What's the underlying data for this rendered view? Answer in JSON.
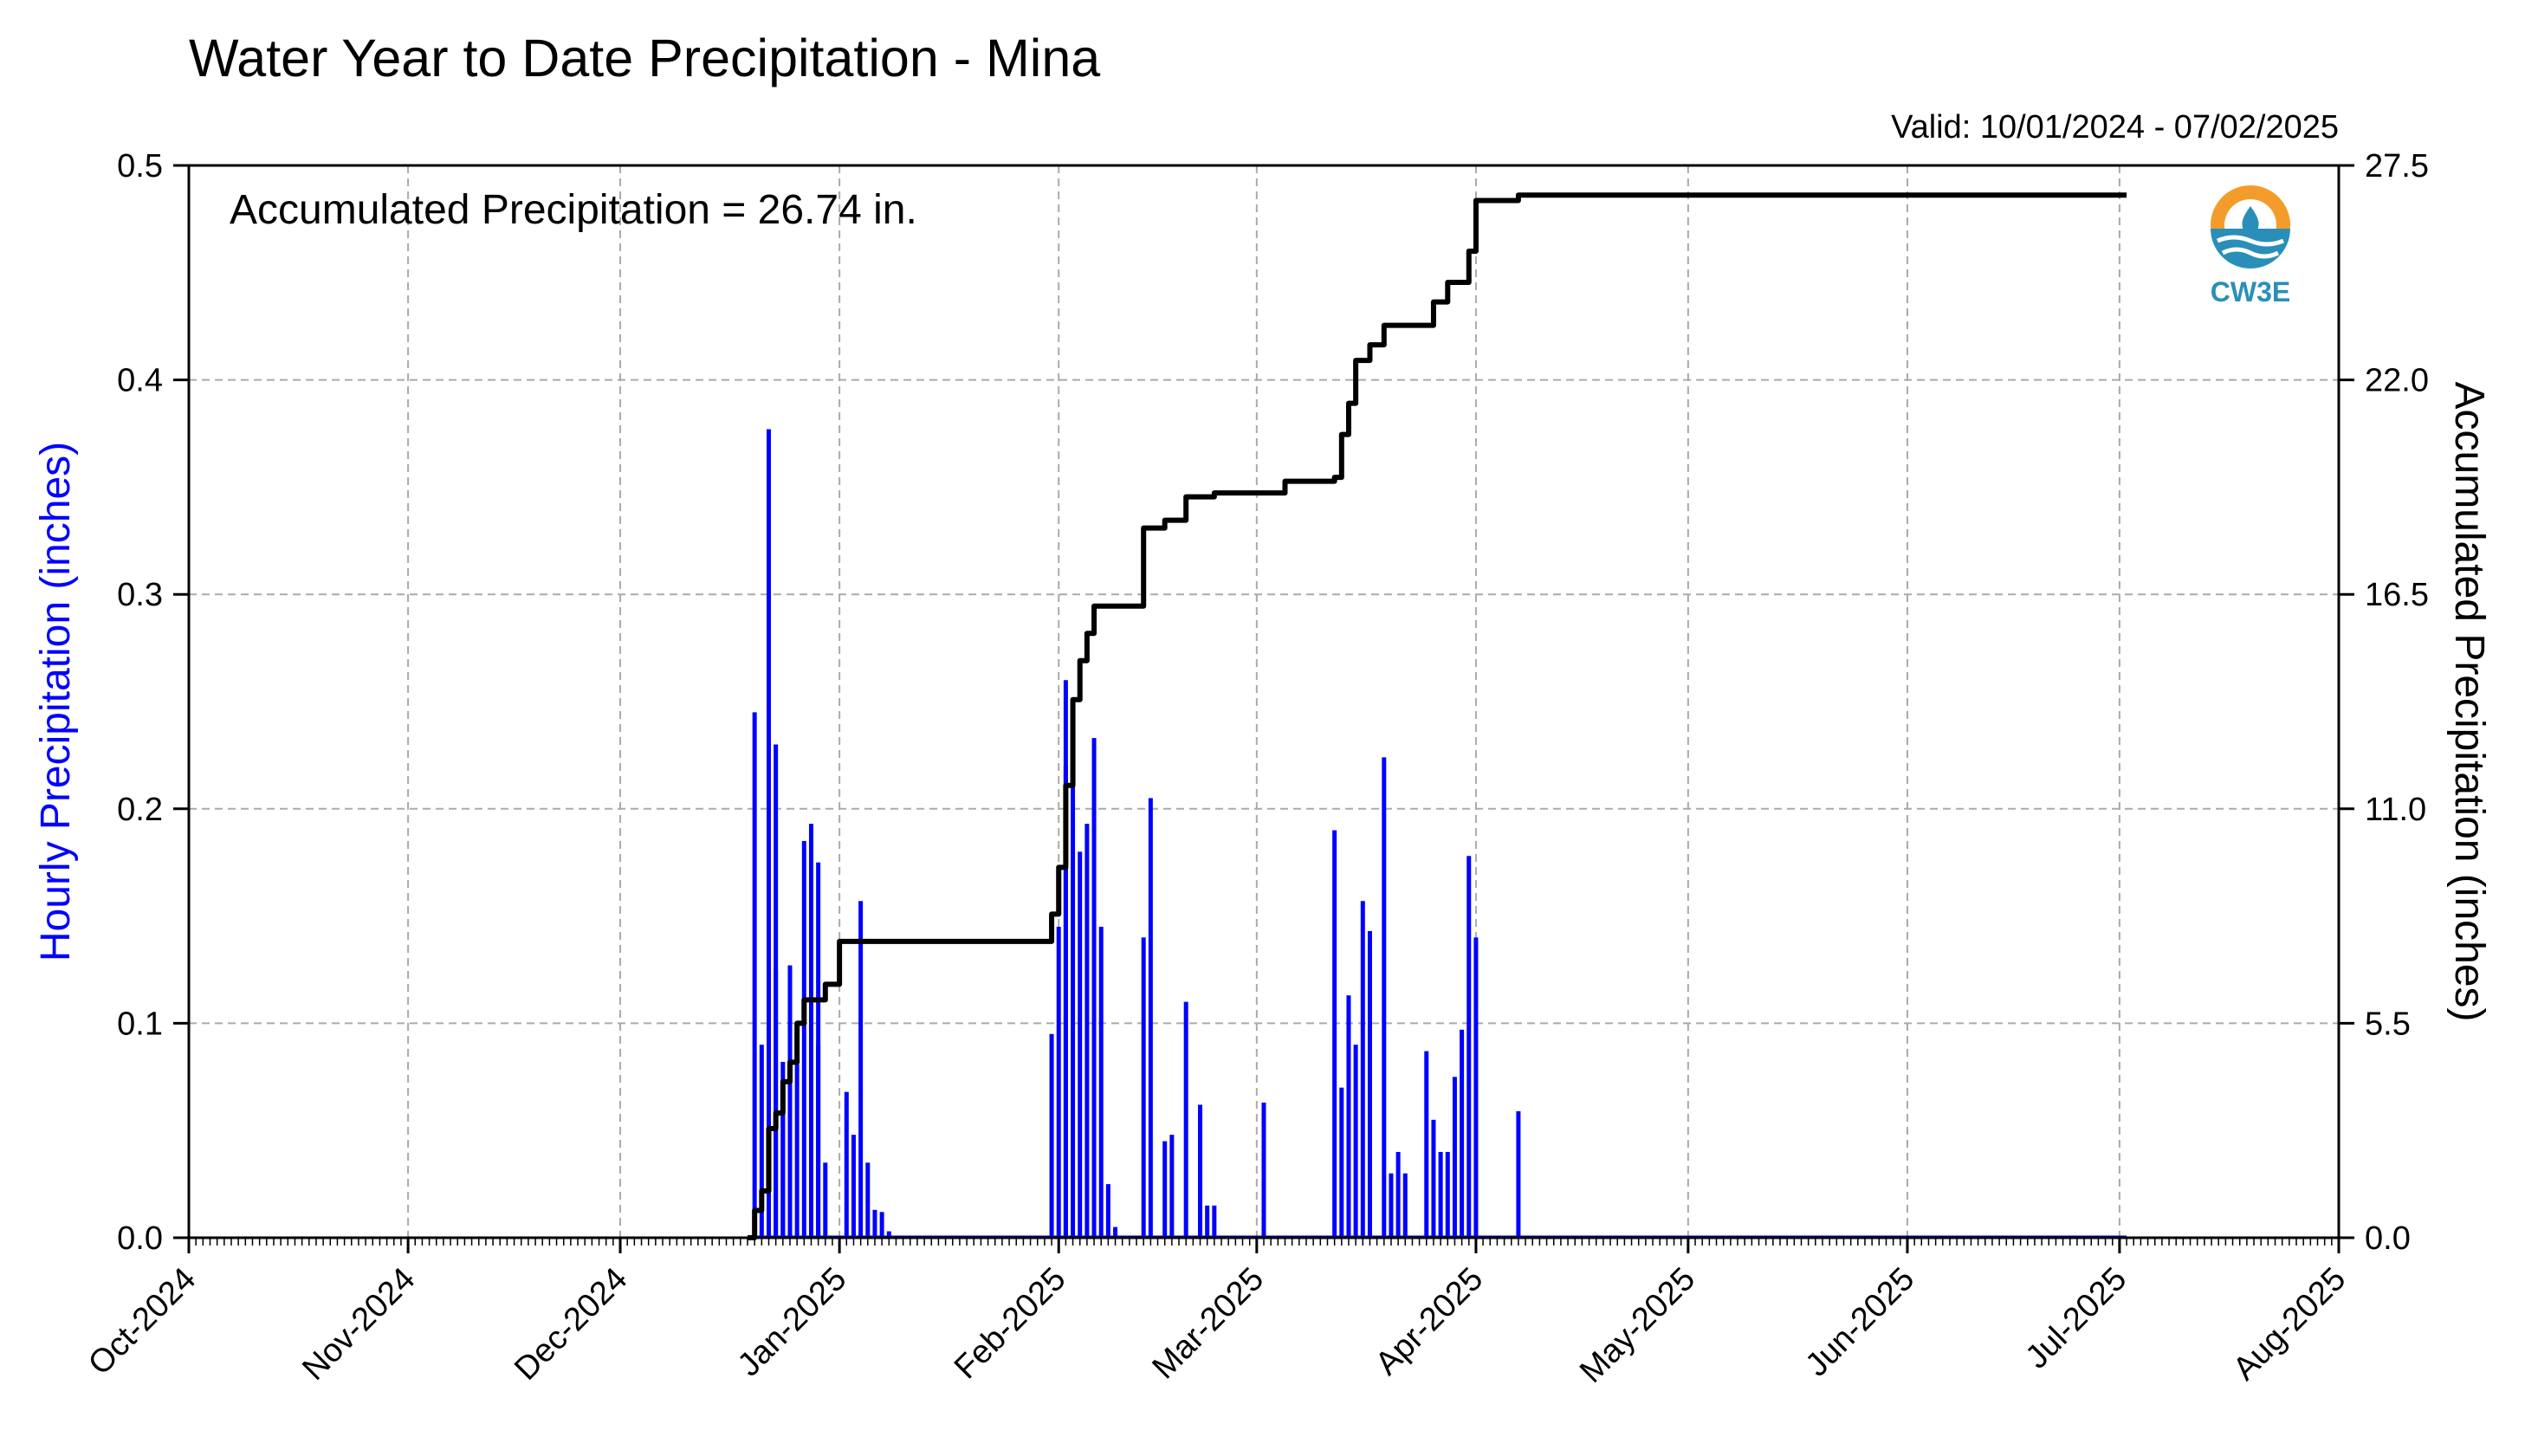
{
  "colors": {
    "hourly": "#0000ff",
    "accumulated": "#000000",
    "grid": "#aaaaaa",
    "logo_orange": "#f39c2b",
    "logo_blue": "#2a8fb8"
  },
  "logo": {
    "name": "cw3e-logo-icon",
    "text": "CW3E"
  },
  "chart_data": {
    "type": "bar+line",
    "title": "Water Year to Date Precipitation - Mina",
    "subtitle": "Valid: 10/01/2024 - 07/02/2025",
    "annotation": "Accumulated Precipitation = 26.74 in.",
    "ylabel_left": "Hourly Precipitation (inches)",
    "ylabel_right": "Accumulated Precipitation (inches)",
    "xlim": [
      "2024-10-01",
      "2025-08-01"
    ],
    "ylim_left": [
      0,
      0.5
    ],
    "ylim_right": [
      0,
      27.5
    ],
    "xticks": [
      "Oct-2024",
      "Nov-2024",
      "Dec-2024",
      "Jan-2025",
      "Feb-2025",
      "Mar-2025",
      "Apr-2025",
      "May-2025",
      "Jun-2025",
      "Jul-2025",
      "Aug-2025"
    ],
    "yticks_left": [
      "0.0",
      "0.1",
      "0.2",
      "0.3",
      "0.4",
      "0.5"
    ],
    "yticks_right": [
      "0.0",
      "5.5",
      "11.0",
      "16.5",
      "22.0",
      "27.5"
    ],
    "grid": true,
    "series": [
      {
        "name": "Hourly Precipitation (inches)",
        "type": "bar",
        "axis": "left",
        "x": [
          "2024-12-20",
          "2024-12-21",
          "2024-12-22",
          "2024-12-23",
          "2024-12-23",
          "2024-12-24",
          "2024-12-24",
          "2024-12-25",
          "2024-12-26",
          "2024-12-27",
          "2024-12-28",
          "2024-12-29",
          "2024-12-29",
          "2024-12-30",
          "2025-01-02",
          "2025-01-03",
          "2025-01-04",
          "2025-01-05",
          "2025-01-06",
          "2025-01-07",
          "2025-01-08",
          "2025-01-31",
          "2025-02-01",
          "2025-02-02",
          "2025-02-02",
          "2025-02-03",
          "2025-02-04",
          "2025-02-05",
          "2025-02-06",
          "2025-02-07",
          "2025-02-08",
          "2025-02-09",
          "2025-02-13",
          "2025-02-14",
          "2025-02-16",
          "2025-02-17",
          "2025-02-19",
          "2025-02-21",
          "2025-02-22",
          "2025-02-23",
          "2025-03-02",
          "2025-03-12",
          "2025-03-13",
          "2025-03-14",
          "2025-03-15",
          "2025-03-16",
          "2025-03-17",
          "2025-03-19",
          "2025-03-20",
          "2025-03-21",
          "2025-03-22",
          "2025-03-25",
          "2025-03-26",
          "2025-03-27",
          "2025-03-28",
          "2025-03-29",
          "2025-03-30",
          "2025-03-31",
          "2025-04-01",
          "2025-04-07"
        ],
        "values": [
          0.245,
          0.09,
          0.377,
          0.23,
          0.125,
          0.06,
          0.082,
          0.127,
          0.09,
          0.185,
          0.193,
          0.175,
          0.09,
          0.035,
          0.068,
          0.048,
          0.157,
          0.035,
          0.013,
          0.012,
          0.003,
          0.095,
          0.145,
          0.26,
          0.22,
          0.25,
          0.18,
          0.193,
          0.233,
          0.145,
          0.025,
          0.005,
          0.14,
          0.205,
          0.045,
          0.048,
          0.11,
          0.062,
          0.015,
          0.015,
          0.063,
          0.19,
          0.07,
          0.113,
          0.09,
          0.157,
          0.143,
          0.224,
          0.03,
          0.04,
          0.03,
          0.087,
          0.055,
          0.04,
          0.04,
          0.075,
          0.097,
          0.178,
          0.14,
          0.059
        ]
      },
      {
        "name": "Accumulated Precipitation (inches)",
        "type": "line",
        "axis": "right",
        "x": [
          "2024-12-19",
          "2024-12-20",
          "2024-12-21",
          "2024-12-22",
          "2024-12-23",
          "2024-12-24",
          "2024-12-25",
          "2024-12-26",
          "2024-12-27",
          "2024-12-28",
          "2024-12-30",
          "2025-01-01",
          "2025-01-03",
          "2025-01-04",
          "2025-01-31",
          "2025-02-01",
          "2025-02-02",
          "2025-02-03",
          "2025-02-04",
          "2025-02-05",
          "2025-02-06",
          "2025-02-12",
          "2025-02-13",
          "2025-02-16",
          "2025-02-19",
          "2025-02-23",
          "2025-03-05",
          "2025-03-12",
          "2025-03-13",
          "2025-03-14",
          "2025-03-15",
          "2025-03-17",
          "2025-03-19",
          "2025-03-22",
          "2025-03-26",
          "2025-03-28",
          "2025-03-31",
          "2025-04-01",
          "2025-04-07",
          "2025-07-02"
        ],
        "values": [
          0.0,
          0.7,
          1.2,
          2.8,
          3.2,
          4.0,
          4.5,
          5.5,
          6.1,
          6.1,
          6.5,
          7.6,
          7.6,
          7.6,
          8.3,
          9.5,
          11.6,
          13.8,
          14.8,
          15.5,
          16.2,
          16.2,
          18.2,
          18.4,
          19.0,
          19.1,
          19.4,
          19.5,
          20.6,
          21.4,
          22.5,
          22.9,
          23.4,
          23.4,
          24.0,
          24.5,
          25.3,
          26.6,
          26.74,
          26.74
        ]
      }
    ]
  }
}
